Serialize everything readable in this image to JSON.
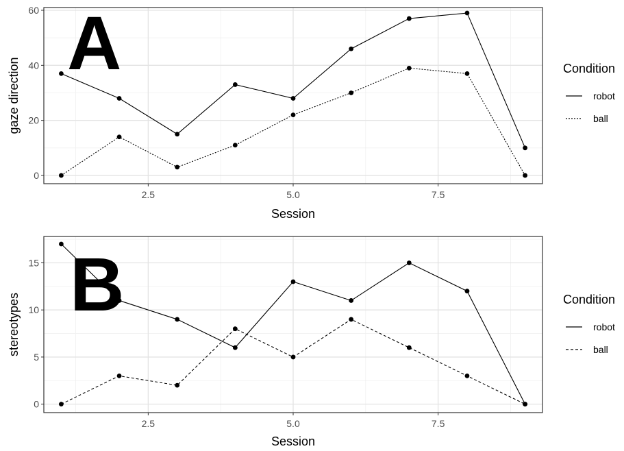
{
  "chart_data": [
    {
      "type": "line",
      "panel_label": "A",
      "title": "",
      "xlabel": "Session",
      "ylabel": "gaze direction",
      "x": [
        1,
        2,
        3,
        4,
        5,
        6,
        7,
        8,
        9
      ],
      "xlim": [
        0.7,
        9.3
      ],
      "ylim": [
        -3,
        61
      ],
      "xticks": [
        2.5,
        5.0,
        7.5
      ],
      "xtick_labels": [
        "2.5",
        "5.0",
        "7.5"
      ],
      "yticks": [
        0,
        20,
        40,
        60
      ],
      "ytick_labels": [
        "0",
        "20",
        "40",
        "60"
      ],
      "grid": true,
      "legend_title": "Condition",
      "legend_position": "right",
      "series": [
        {
          "name": "robot",
          "line_style": "solid",
          "values": [
            37,
            28,
            15,
            33,
            28,
            46,
            57,
            59,
            10
          ]
        },
        {
          "name": "ball",
          "line_style": "dotted",
          "values": [
            0,
            14,
            3,
            11,
            22,
            30,
            39,
            37,
            0
          ]
        }
      ]
    },
    {
      "type": "line",
      "panel_label": "B",
      "title": "",
      "xlabel": "Session",
      "ylabel": "stereotypes",
      "x": [
        1,
        2,
        3,
        4,
        5,
        6,
        7,
        8,
        9
      ],
      "xlim": [
        0.7,
        9.3
      ],
      "ylim": [
        -0.9,
        17.8
      ],
      "xticks": [
        2.5,
        5.0,
        7.5
      ],
      "xtick_labels": [
        "2.5",
        "5.0",
        "7.5"
      ],
      "yticks": [
        0,
        5,
        10,
        15
      ],
      "ytick_labels": [
        "0",
        "5",
        "10",
        "15"
      ],
      "grid": true,
      "legend_title": "Condition",
      "legend_position": "right",
      "series": [
        {
          "name": "robot",
          "line_style": "solid",
          "values": [
            17,
            11,
            9,
            6,
            13,
            11,
            15,
            12,
            0
          ]
        },
        {
          "name": "ball",
          "line_style": "dashed",
          "values": [
            0,
            3,
            2,
            8,
            5,
            9,
            6,
            3,
            0
          ]
        }
      ]
    }
  ]
}
